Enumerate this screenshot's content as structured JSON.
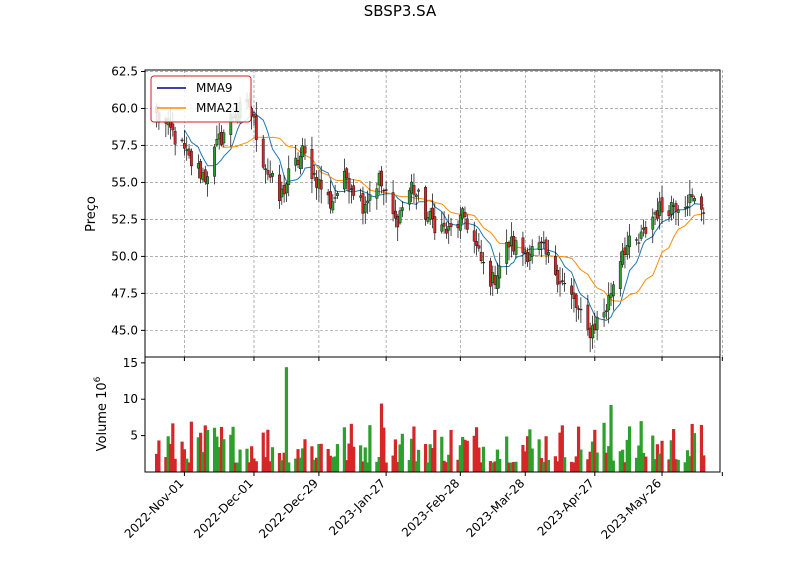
{
  "chart_data": {
    "type": "candlestick",
    "title": "SBSP3.SA",
    "price_panel": {
      "ylabel": "Preço",
      "ylim": [
        43.2,
        62.6
      ],
      "yticks": [
        45.0,
        47.5,
        50.0,
        52.5,
        55.0,
        57.5,
        60.0,
        62.5
      ],
      "grid": true,
      "legend": {
        "placement": "top-left",
        "entries": [
          {
            "name": "MMA9",
            "color": "#00008b"
          },
          {
            "name": "MMA21",
            "color": "#ff8c00"
          }
        ]
      }
    },
    "volume_panel": {
      "ylabel": "Volume  10",
      "ylabel_exp": "6",
      "ylim": [
        0,
        15.8
      ],
      "yticks": [
        5,
        10,
        15
      ]
    },
    "colors": {
      "up": "#2ca02c",
      "down": "#d62728",
      "mma9_line": "#1f77b4",
      "mma21_line": "#ff8c00",
      "grid": "#808080"
    },
    "x_ticks": [
      {
        "label": "2022-Nov-01",
        "date": "2022-11-01"
      },
      {
        "label": "2022-Dec-01",
        "date": "2022-12-01"
      },
      {
        "label": "2022-Dec-29",
        "date": "2022-12-29"
      },
      {
        "label": "2023-Jan-27",
        "date": "2023-01-27"
      },
      {
        "label": "2023-Feb-28",
        "date": "2023-02-28"
      },
      {
        "label": "2023-Mar-28",
        "date": "2023-03-28"
      },
      {
        "label": "2023-Apr-27",
        "date": "2023-04-27"
      },
      {
        "label": "2023-May-26",
        "date": "2023-05-26"
      }
    ],
    "close_anchors": [
      [
        "2022-10-20",
        59.5
      ],
      [
        "2022-10-27",
        58.3
      ],
      [
        "2022-11-03",
        56.5
      ],
      [
        "2022-11-10",
        55.4
      ],
      [
        "2022-11-16",
        57.8
      ],
      [
        "2022-11-22",
        59.6
      ],
      [
        "2022-11-29",
        60.2
      ],
      [
        "2022-12-05",
        56.5
      ],
      [
        "2022-12-12",
        53.8
      ],
      [
        "2022-12-16",
        55.4
      ],
      [
        "2022-12-22",
        57.0
      ],
      [
        "2022-12-27",
        55.5
      ],
      [
        "2023-01-03",
        53.6
      ],
      [
        "2023-01-10",
        55.4
      ],
      [
        "2023-01-17",
        53.6
      ],
      [
        "2023-01-24",
        55.2
      ],
      [
        "2023-01-31",
        52.3
      ],
      [
        "2023-02-07",
        54.8
      ],
      [
        "2023-02-14",
        52.6
      ],
      [
        "2023-02-23",
        51.6
      ],
      [
        "2023-03-02",
        52.7
      ],
      [
        "2023-03-09",
        49.6
      ],
      [
        "2023-03-14",
        48.3
      ],
      [
        "2023-03-21",
        50.9
      ],
      [
        "2023-03-28",
        50.3
      ],
      [
        "2023-04-04",
        50.5
      ],
      [
        "2023-04-11",
        48.8
      ],
      [
        "2023-04-18",
        46.9
      ],
      [
        "2023-04-24",
        44.8
      ],
      [
        "2023-05-02",
        46.5
      ],
      [
        "2023-05-09",
        50.6
      ],
      [
        "2023-05-16",
        50.9
      ],
      [
        "2023-05-23",
        53.0
      ],
      [
        "2023-05-30",
        53.5
      ],
      [
        "2023-06-06",
        53.9
      ],
      [
        "2023-06-13",
        53.3
      ]
    ],
    "volume_profile": {
      "range": [
        1.3,
        9.2
      ],
      "spikes": [
        [
          "2022-12-15",
          14.4
        ],
        [
          "2023-01-25",
          9.4
        ],
        [
          "2023-05-04",
          9.2
        ]
      ]
    }
  }
}
